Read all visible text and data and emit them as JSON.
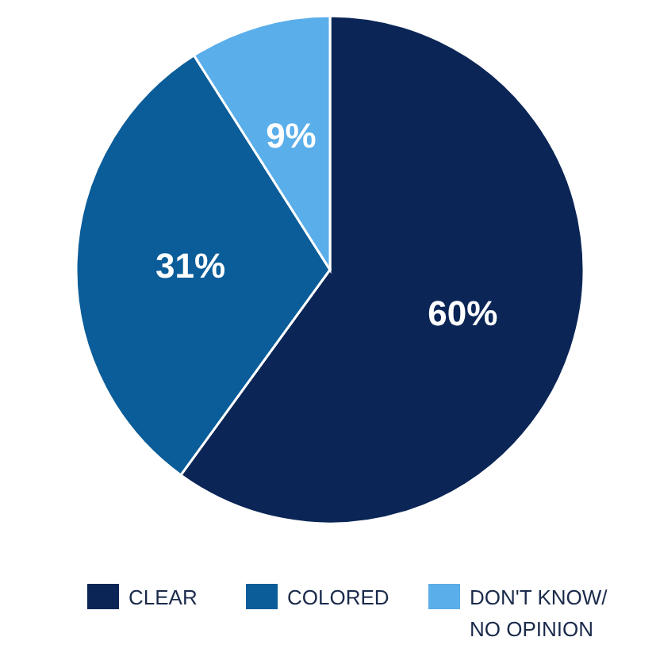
{
  "chart_data": {
    "type": "pie",
    "categories": [
      "CLEAR",
      "COLORED",
      "DON'T KNOW/ NO OPINION"
    ],
    "values": [
      60,
      31,
      9
    ],
    "colors": [
      "#0b2656",
      "#0a5d99",
      "#5aaeea"
    ],
    "value_labels": [
      "60%",
      "31%",
      "9%"
    ],
    "legend": "bottom"
  }
}
